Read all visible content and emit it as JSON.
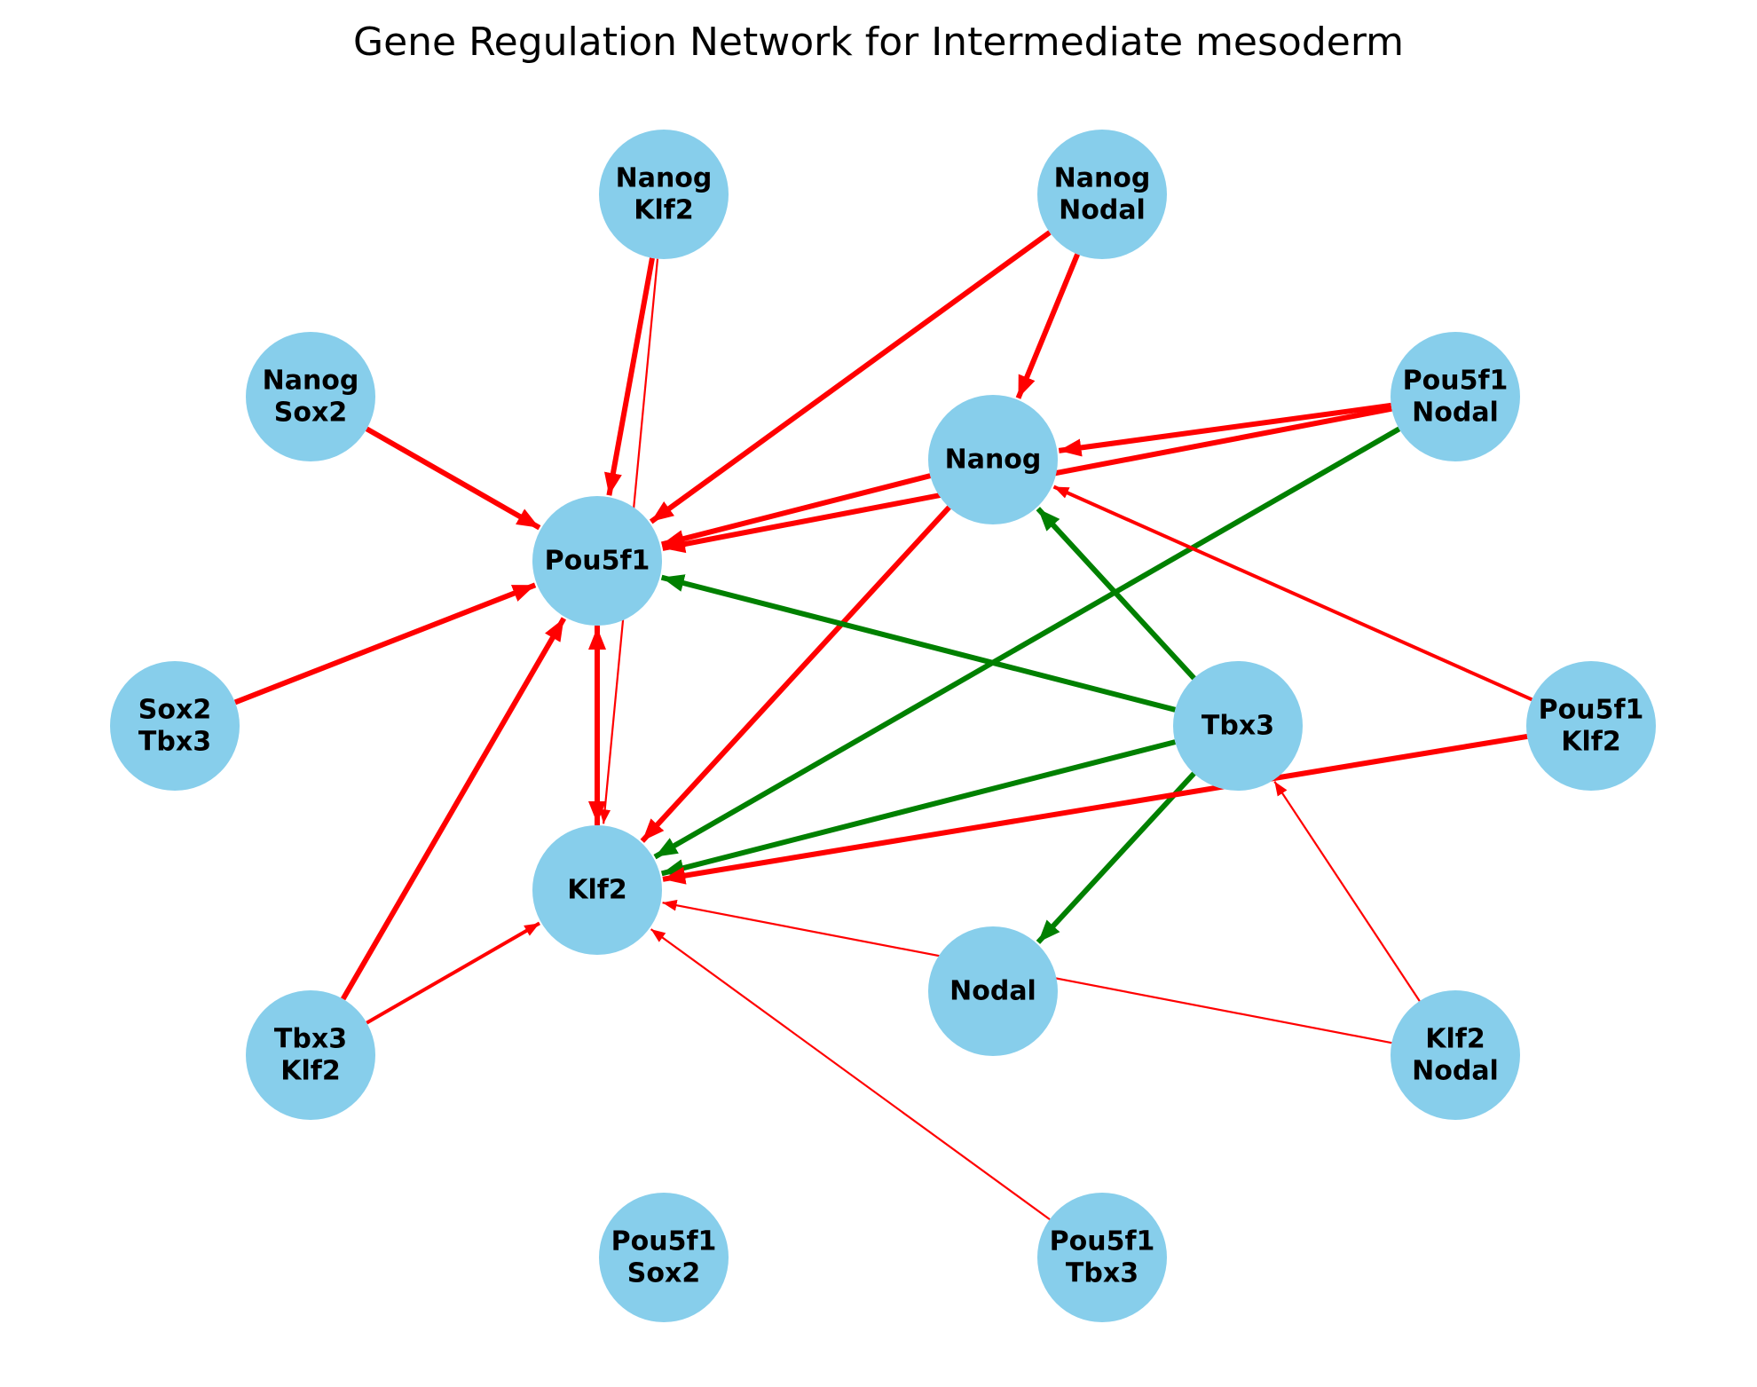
{
  "title": "Gene Regulation Network for Intermediate mesoderm",
  "colors": {
    "node_fill": "#87CEEB",
    "activation": "#FF0000",
    "inhibition": "#008000",
    "label": "#000000"
  },
  "nodes": [
    {
      "id": "pou5f1",
      "lines": [
        "Pou5f1"
      ]
    },
    {
      "id": "klf2",
      "lines": [
        "Klf2"
      ]
    },
    {
      "id": "nanog",
      "lines": [
        "Nanog"
      ]
    },
    {
      "id": "tbx3",
      "lines": [
        "Tbx3"
      ]
    },
    {
      "id": "nodal",
      "lines": [
        "Nodal"
      ]
    },
    {
      "id": "nanog-klf2",
      "lines": [
        "Nanog",
        "Klf2"
      ]
    },
    {
      "id": "nanog-nodal",
      "lines": [
        "Nanog",
        "Nodal"
      ]
    },
    {
      "id": "nanog-sox2",
      "lines": [
        "Nanog",
        "Sox2"
      ]
    },
    {
      "id": "pou5f1-nodal",
      "lines": [
        "Pou5f1",
        "Nodal"
      ]
    },
    {
      "id": "sox2-tbx3",
      "lines": [
        "Sox2",
        "Tbx3"
      ]
    },
    {
      "id": "pou5f1-klf2",
      "lines": [
        "Pou5f1",
        "Klf2"
      ]
    },
    {
      "id": "tbx3-klf2",
      "lines": [
        "Tbx3",
        "Klf2"
      ]
    },
    {
      "id": "klf2-nodal",
      "lines": [
        "Klf2",
        "Nodal"
      ]
    },
    {
      "id": "pou5f1-sox2",
      "lines": [
        "Pou5f1",
        "Sox2"
      ]
    },
    {
      "id": "pou5f1-tbx3",
      "lines": [
        "Pou5f1",
        "Tbx3"
      ]
    }
  ],
  "edges": [
    {
      "from": "nanog-klf2",
      "to": "pou5f1",
      "type": "activation",
      "weight": 3
    },
    {
      "from": "nanog-klf2",
      "to": "klf2",
      "type": "activation",
      "weight": 1
    },
    {
      "from": "nanog-nodal",
      "to": "pou5f1",
      "type": "activation",
      "weight": 3
    },
    {
      "from": "nanog-nodal",
      "to": "nanog",
      "type": "activation",
      "weight": 3
    },
    {
      "from": "nanog-sox2",
      "to": "pou5f1",
      "type": "activation",
      "weight": 3
    },
    {
      "from": "pou5f1-nodal",
      "to": "nanog",
      "type": "activation",
      "weight": 3
    },
    {
      "from": "pou5f1-nodal",
      "to": "pou5f1",
      "type": "activation",
      "weight": 3
    },
    {
      "from": "pou5f1-nodal",
      "to": "klf2",
      "type": "inhibition",
      "weight": 3
    },
    {
      "from": "nanog",
      "to": "pou5f1",
      "type": "activation",
      "weight": 3
    },
    {
      "from": "nanog",
      "to": "klf2",
      "type": "activation",
      "weight": 3
    },
    {
      "from": "sox2-tbx3",
      "to": "pou5f1",
      "type": "activation",
      "weight": 3
    },
    {
      "from": "pou5f1",
      "to": "klf2",
      "type": "activation",
      "weight": 3
    },
    {
      "from": "klf2",
      "to": "pou5f1",
      "type": "activation",
      "weight": 3
    },
    {
      "from": "tbx3",
      "to": "pou5f1",
      "type": "inhibition",
      "weight": 3
    },
    {
      "from": "tbx3",
      "to": "nanog",
      "type": "inhibition",
      "weight": 3
    },
    {
      "from": "tbx3",
      "to": "klf2",
      "type": "inhibition",
      "weight": 3
    },
    {
      "from": "tbx3",
      "to": "nodal",
      "type": "inhibition",
      "weight": 3
    },
    {
      "from": "pou5f1-klf2",
      "to": "nanog",
      "type": "activation",
      "weight": 2
    },
    {
      "from": "pou5f1-klf2",
      "to": "klf2",
      "type": "activation",
      "weight": 3
    },
    {
      "from": "tbx3-klf2",
      "to": "pou5f1",
      "type": "activation",
      "weight": 3
    },
    {
      "from": "tbx3-klf2",
      "to": "klf2",
      "type": "activation",
      "weight": 2
    },
    {
      "from": "klf2-nodal",
      "to": "klf2",
      "type": "activation",
      "weight": 1
    },
    {
      "from": "klf2-nodal",
      "to": "tbx3",
      "type": "activation",
      "weight": 1
    },
    {
      "from": "pou5f1-tbx3",
      "to": "klf2",
      "type": "activation",
      "weight": 1
    }
  ]
}
